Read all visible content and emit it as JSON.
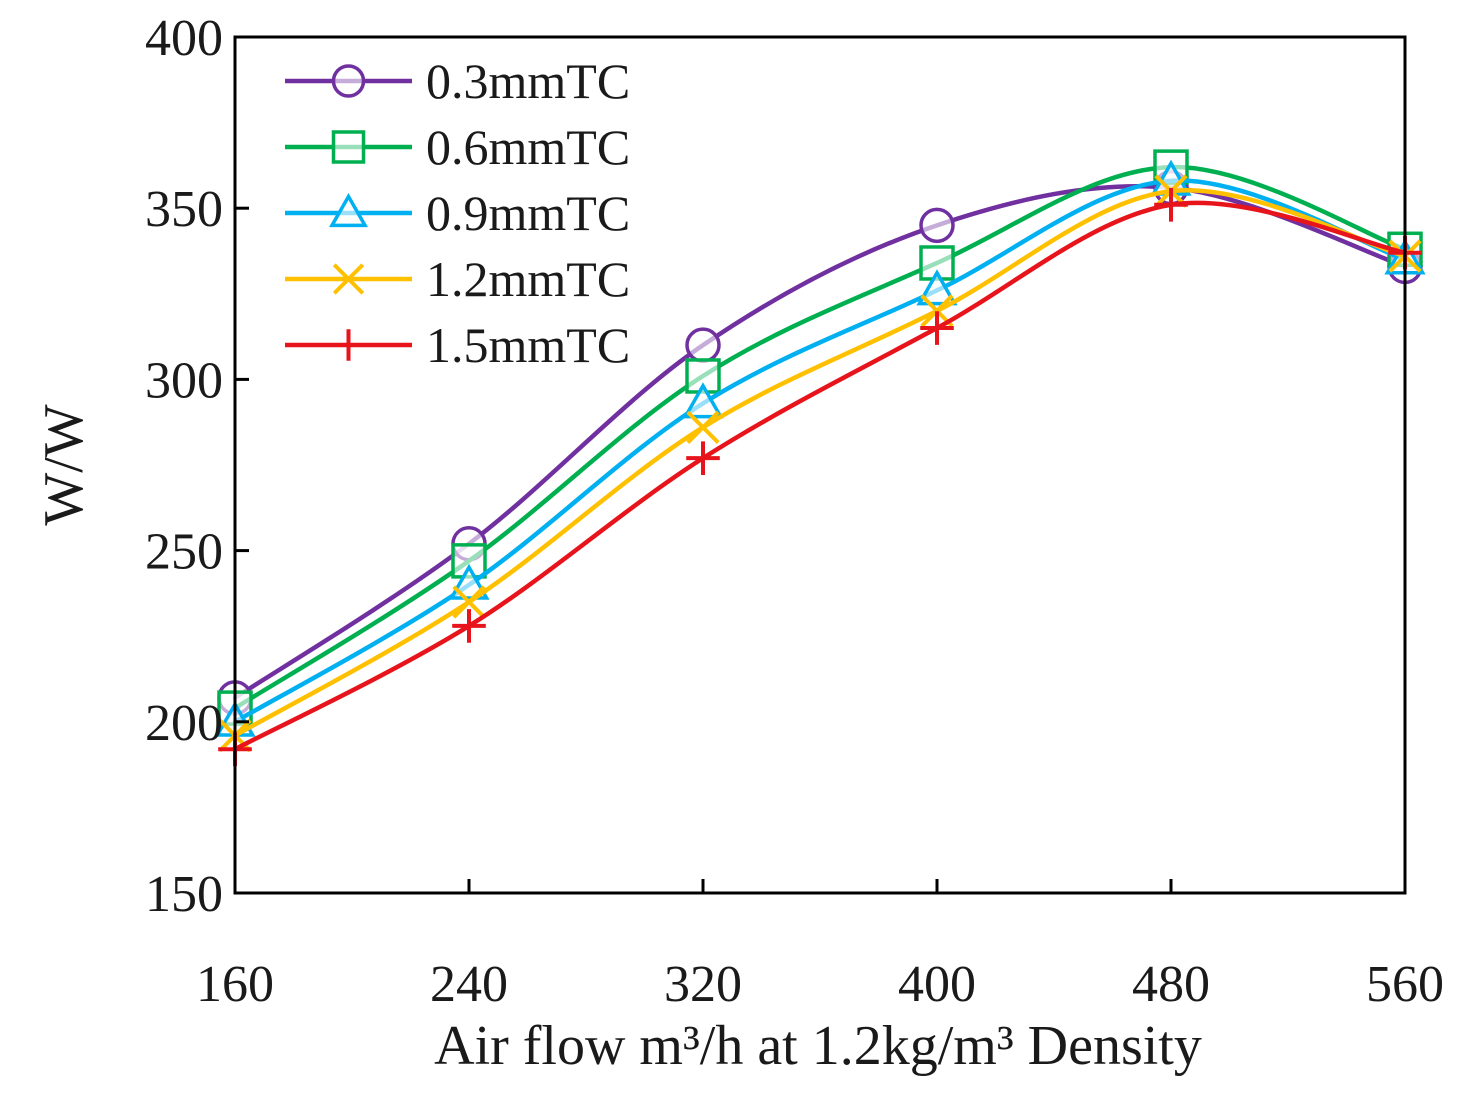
{
  "chart_data": {
    "type": "line",
    "title": "",
    "xlabel": "Air flow  m³/h at 1.2kg/m³ Density",
    "ylabel": "W/W",
    "x": [
      160,
      240,
      320,
      400,
      480,
      560
    ],
    "x_tick_labels": [
      "160",
      "240",
      "320",
      "400",
      "480",
      "560"
    ],
    "xlim": [
      160,
      560
    ],
    "ylim": [
      150,
      400
    ],
    "y_ticks": [
      150,
      200,
      250,
      300,
      350,
      400
    ],
    "y_tick_labels": [
      "150",
      "200",
      "250",
      "300",
      "350",
      "400"
    ],
    "grid": false,
    "legend_position": "top-left",
    "series": [
      {
        "name": "0.3mmTC",
        "color": "#7030A0",
        "marker": "circle",
        "values": [
          207,
          252,
          310,
          345,
          356,
          333
        ]
      },
      {
        "name": "0.6mmTC",
        "color": "#00B050",
        "marker": "square",
        "values": [
          204,
          247,
          301,
          334,
          362,
          338
        ]
      },
      {
        "name": "0.9mmTC",
        "color": "#00B0F0",
        "marker": "triangle",
        "values": [
          200,
          240,
          293,
          326,
          358,
          335
        ]
      },
      {
        "name": "1.2mmTC",
        "color": "#FFC000",
        "marker": "x",
        "values": [
          196,
          235,
          286,
          320,
          355,
          336
        ]
      },
      {
        "name": "1.5mmTC",
        "color": "#E8141C",
        "marker": "plus",
        "values": [
          192,
          228,
          277,
          315,
          351,
          337
        ]
      }
    ]
  }
}
